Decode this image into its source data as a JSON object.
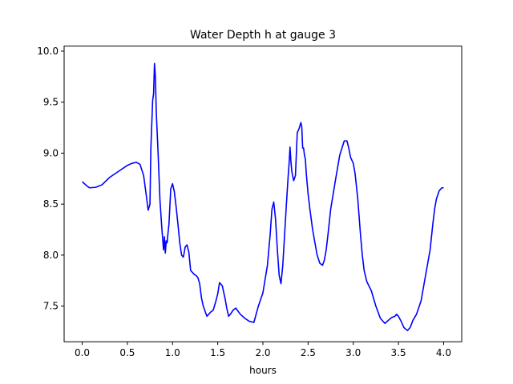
{
  "chart_data": {
    "type": "line",
    "title": "Water Depth h at gauge 3",
    "xlabel": "hours",
    "ylabel": "",
    "xlim": [
      -0.2,
      4.2
    ],
    "ylim": [
      7.15,
      10.05
    ],
    "xticks": [
      0.0,
      0.5,
      1.0,
      1.5,
      2.0,
      2.5,
      3.0,
      3.5,
      4.0
    ],
    "xtick_labels": [
      "0.0",
      "0.5",
      "1.0",
      "1.5",
      "2.0",
      "2.5",
      "3.0",
      "3.5",
      "4.0"
    ],
    "yticks": [
      7.5,
      8.0,
      8.5,
      9.0,
      9.5,
      10.0
    ],
    "ytick_labels": [
      "7.5",
      "8.0",
      "8.5",
      "9.0",
      "9.5",
      "10.0"
    ],
    "grid": false,
    "series": [
      {
        "color": "#0000ff",
        "x": [
          0.0,
          0.05,
          0.08,
          0.15,
          0.22,
          0.3,
          0.4,
          0.5,
          0.55,
          0.6,
          0.64,
          0.68,
          0.71,
          0.73,
          0.75,
          0.76,
          0.78,
          0.79,
          0.8,
          0.81,
          0.82,
          0.84,
          0.86,
          0.88,
          0.9,
          0.91,
          0.92,
          0.93,
          0.94,
          0.95,
          0.96,
          0.98,
          1.0,
          1.02,
          1.04,
          1.06,
          1.08,
          1.1,
          1.12,
          1.14,
          1.16,
          1.18,
          1.2,
          1.22,
          1.24,
          1.26,
          1.28,
          1.3,
          1.32,
          1.34,
          1.36,
          1.38,
          1.4,
          1.42,
          1.45,
          1.48,
          1.5,
          1.52,
          1.55,
          1.58,
          1.6,
          1.62,
          1.64,
          1.67,
          1.7,
          1.75,
          1.8,
          1.85,
          1.9,
          1.95,
          2.0,
          2.05,
          2.08,
          2.1,
          2.12,
          2.14,
          2.16,
          2.18,
          2.2,
          2.22,
          2.24,
          2.26,
          2.28,
          2.29,
          2.3,
          2.31,
          2.32,
          2.34,
          2.36,
          2.38,
          2.4,
          2.42,
          2.43,
          2.44,
          2.45,
          2.46,
          2.47,
          2.48,
          2.5,
          2.52,
          2.55,
          2.58,
          2.6,
          2.63,
          2.66,
          2.68,
          2.7,
          2.72,
          2.75,
          2.8,
          2.85,
          2.9,
          2.93,
          2.95,
          2.97,
          3.0,
          3.02,
          3.05,
          3.08,
          3.1,
          3.12,
          3.15,
          3.2,
          3.25,
          3.3,
          3.35,
          3.4,
          3.43,
          3.46,
          3.48,
          3.5,
          3.53,
          3.56,
          3.6,
          3.63,
          3.66,
          3.7,
          3.75,
          3.8,
          3.85,
          3.88,
          3.9,
          3.92,
          3.95,
          3.98,
          4.0
        ],
        "values": [
          8.72,
          8.68,
          8.66,
          8.665,
          8.69,
          8.76,
          8.82,
          8.88,
          8.9,
          8.91,
          8.89,
          8.78,
          8.58,
          8.44,
          8.5,
          9.05,
          9.52,
          9.58,
          9.88,
          9.75,
          9.4,
          9.0,
          8.55,
          8.28,
          8.05,
          8.18,
          8.02,
          8.14,
          8.12,
          8.22,
          8.3,
          8.65,
          8.7,
          8.62,
          8.47,
          8.3,
          8.12,
          8.0,
          7.98,
          8.08,
          8.1,
          8.03,
          7.85,
          7.83,
          7.81,
          7.8,
          7.78,
          7.72,
          7.58,
          7.5,
          7.45,
          7.4,
          7.42,
          7.44,
          7.46,
          7.55,
          7.62,
          7.73,
          7.7,
          7.58,
          7.48,
          7.4,
          7.42,
          7.46,
          7.48,
          7.42,
          7.38,
          7.35,
          7.34,
          7.5,
          7.63,
          7.9,
          8.2,
          8.45,
          8.52,
          8.35,
          8.05,
          7.8,
          7.72,
          7.9,
          8.2,
          8.5,
          8.78,
          8.9,
          9.06,
          8.92,
          8.82,
          8.73,
          8.78,
          9.2,
          9.24,
          9.3,
          9.26,
          9.05,
          9.05,
          8.98,
          8.94,
          8.8,
          8.6,
          8.45,
          8.25,
          8.1,
          8.0,
          7.92,
          7.9,
          7.95,
          8.05,
          8.2,
          8.45,
          8.72,
          8.98,
          9.12,
          9.12,
          9.05,
          8.96,
          8.9,
          8.8,
          8.55,
          8.2,
          8.0,
          7.85,
          7.74,
          7.65,
          7.5,
          7.38,
          7.33,
          7.37,
          7.39,
          7.4,
          7.42,
          7.4,
          7.35,
          7.29,
          7.26,
          7.29,
          7.36,
          7.42,
          7.55,
          7.8,
          8.05,
          8.3,
          8.45,
          8.55,
          8.63,
          8.66,
          8.66
        ]
      }
    ]
  }
}
